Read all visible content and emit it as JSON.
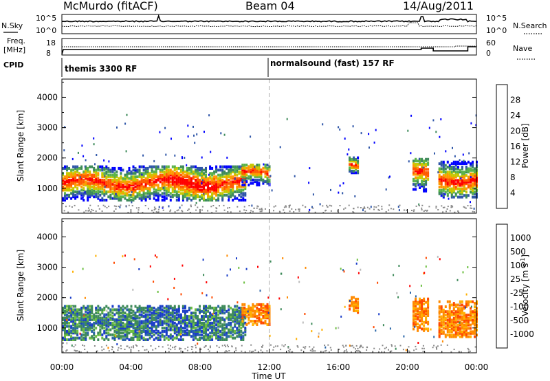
{
  "header": {
    "station": "McMurdo (fitACF)",
    "beam": "Beam 04",
    "date": "14/Aug/2011"
  },
  "side_labels": {
    "nsky": "N.Sky",
    "nsky_tick_hi": "10^5",
    "nsky_tick_lo": "10^0",
    "nsearch": "N.Search",
    "nsearch_tick_hi": "10^5",
    "nsearch_tick_lo": "10^0",
    "freq_line1": "Freq.",
    "freq_line2": "[MHz]",
    "freq_tick_hi": "18",
    "freq_tick_lo": "8",
    "nave": "Nave",
    "nave_tick_hi": "60",
    "nave_tick_lo": "0",
    "cpid": "CPID"
  },
  "cpid_segments": [
    {
      "label": "themis 3300 RF",
      "start_hour": 0
    },
    {
      "label": "normalsound (fast) 157 RF",
      "start_hour": 12
    }
  ],
  "colors": {
    "power": [
      "#0000ff",
      "#2f56a8",
      "#3e8a5a",
      "#5ab24a",
      "#c8c800",
      "#ff9900",
      "#ff5a00",
      "#ff0000"
    ],
    "velocity": [
      "#ff0000",
      "#ff4a00",
      "#ff8a00",
      "#ffb000",
      "#bbbbbb",
      "#6cbf40",
      "#3e8a5a",
      "#2a66a8",
      "#1a3dc8"
    ],
    "ground_scatter": "#888888"
  },
  "chart_data": [
    {
      "type": "heatmap",
      "name": "power",
      "ylabel": "Slant Range [km]",
      "xlim": [
        0,
        24
      ],
      "ylim": [
        180,
        4600
      ],
      "yticks": [
        "1000",
        "2000",
        "3000",
        "4000"
      ],
      "colorbar_label": "Power [dB]",
      "colorbar_ticks": [
        "4",
        "8",
        "12",
        "16",
        "20",
        "24",
        "28"
      ],
      "scatter_regions": [
        {
          "x0": 0.0,
          "x1": 10.6,
          "r_lo": 600,
          "r_hi": 1750,
          "note": "main echo band, strongest 1100 km"
        },
        {
          "x0": 10.4,
          "x1": 12.0,
          "r_lo": 1100,
          "r_hi": 1800,
          "note": "band near 1500 km"
        },
        {
          "x0": 16.6,
          "x1": 17.2,
          "r_lo": 1500,
          "r_hi": 2000,
          "note": "patch"
        },
        {
          "x0": 20.3,
          "x1": 21.2,
          "r_lo": 900,
          "r_hi": 2000,
          "note": "patch"
        },
        {
          "x0": 21.8,
          "x1": 24.0,
          "r_lo": 700,
          "r_hi": 1900,
          "note": "patch"
        }
      ]
    },
    {
      "type": "heatmap",
      "name": "velocity",
      "ylabel": "Slant Range [km]",
      "xlabel": "Time UT",
      "xlim": [
        0,
        24
      ],
      "ylim": [
        180,
        4600
      ],
      "xticks": [
        "00:00",
        "04:00",
        "08:00",
        "12:00",
        "16:00",
        "20:00",
        "00:00"
      ],
      "yticks": [
        "1000",
        "2000",
        "3000",
        "4000"
      ],
      "colorbar_label": "Velocity [m s-1]",
      "colorbar_label_parts": {
        "main": "Velocity [m s",
        "exp": "-1",
        "close": "]"
      },
      "colorbar_ticks": [
        "1000",
        "500",
        "100",
        "25",
        "-25",
        "-100",
        "-500",
        "-1000"
      ],
      "scatter_regions": [
        {
          "x0": 0.0,
          "x1": 10.6,
          "r_lo": 600,
          "r_hi": 1750,
          "note": "mostly 100-1000 m/s"
        },
        {
          "x0": 10.4,
          "x1": 12.0,
          "r_lo": 1100,
          "r_hi": 1800,
          "note": "mostly -100 to -500 m/s"
        },
        {
          "x0": 16.6,
          "x1": 17.2,
          "r_lo": 1500,
          "r_hi": 2000,
          "note": "negative"
        },
        {
          "x0": 20.3,
          "x1": 21.2,
          "r_lo": 900,
          "r_hi": 2000,
          "note": "negative"
        },
        {
          "x0": 21.8,
          "x1": 24.0,
          "r_lo": 700,
          "r_hi": 1900,
          "note": "negative"
        }
      ]
    }
  ]
}
